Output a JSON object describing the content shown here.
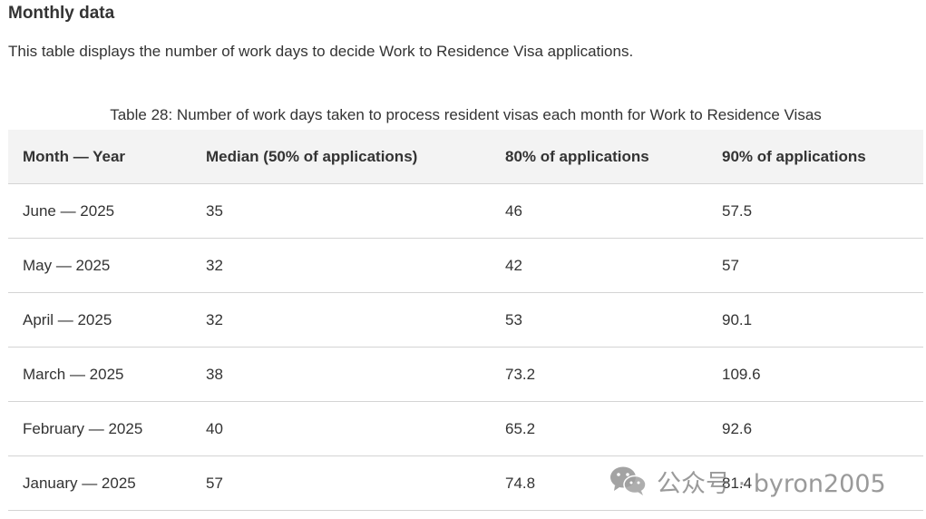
{
  "section": {
    "title": "Monthly data",
    "intro": "This table displays the number of work days to decide Work to Residence Visa applications."
  },
  "table": {
    "caption": "Table 28: Number of work days taken to process resident visas each month for Work to Residence Visas",
    "headers": [
      "Month — Year",
      "Median (50% of applications)",
      "80% of applications",
      "90% of applications"
    ],
    "rows": [
      [
        "June — 2025",
        "35",
        "46",
        "57.5"
      ],
      [
        "May — 2025",
        "32",
        "42",
        "57"
      ],
      [
        "April — 2025",
        "32",
        "53",
        "90.1"
      ],
      [
        "March — 2025",
        "38",
        "73.2",
        "109.6"
      ],
      [
        "February — 2025",
        "40",
        "65.2",
        "92.6"
      ],
      [
        "January — 2025",
        "57",
        "74.8",
        "81.4"
      ]
    ]
  },
  "watermark": {
    "icon": "wechat-icon",
    "text": "公众号 · byron2005"
  }
}
